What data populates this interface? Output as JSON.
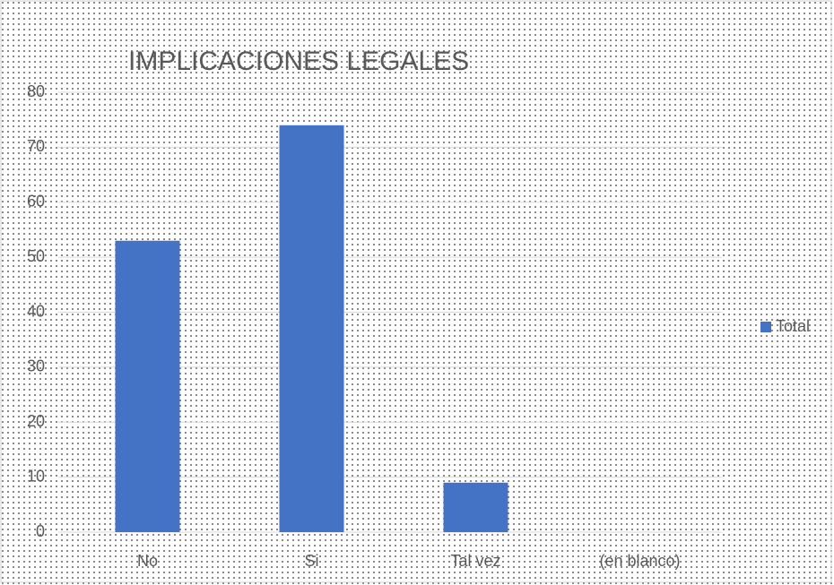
{
  "chart_data": {
    "type": "bar",
    "title": "IMPLICACIONES LEGALES",
    "categories": [
      "No",
      "Si",
      "Tal vez",
      "(en blanco)"
    ],
    "series": [
      {
        "name": "Total",
        "color": "#4472c4",
        "values": [
          53,
          74,
          9,
          null
        ]
      }
    ],
    "ylim": [
      0,
      80
    ],
    "yticks": [
      0,
      10,
      20,
      30,
      40,
      50,
      60,
      70,
      80
    ],
    "grid": true,
    "legend": "right"
  }
}
